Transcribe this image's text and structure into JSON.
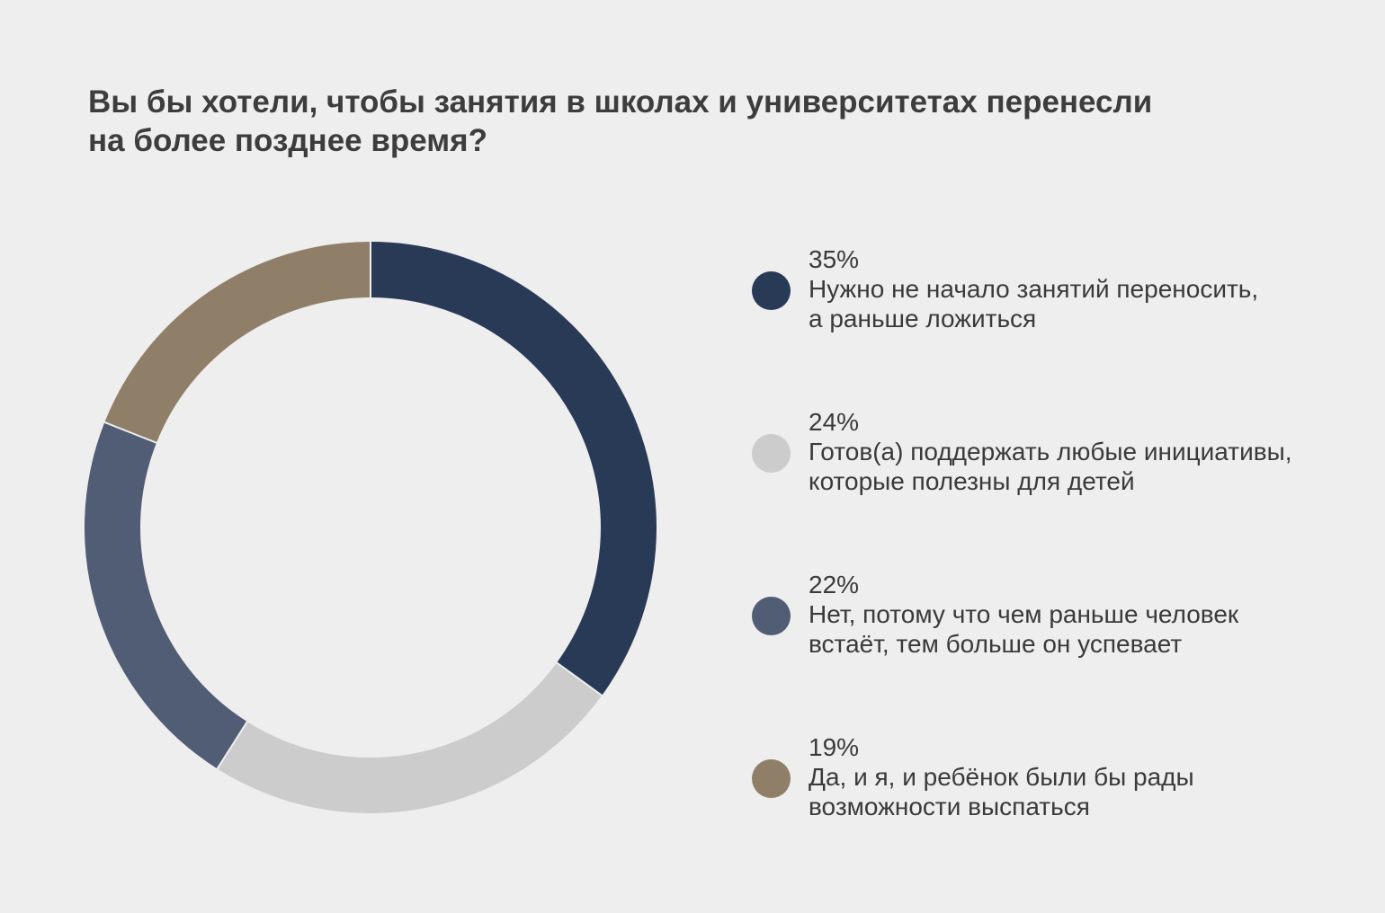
{
  "title": {
    "line1": "Вы бы хотели, чтобы занятия в школах и университетах перенесли",
    "line2": "на более позднее время?"
  },
  "chart_data": {
    "type": "pie",
    "donut": true,
    "title": "Вы бы хотели, чтобы занятия в школах и университетах перенесли на более позднее время?",
    "legend_position": "right",
    "slices": [
      {
        "value": 35,
        "label": "35%",
        "text_line1": "Нужно не начало занятий переносить,",
        "text_line2": "а раньше ложиться",
        "color": "#293a56"
      },
      {
        "value": 24,
        "label": "24%",
        "text_line1": "Готов(а) поддержать любые инициативы,",
        "text_line2": "которые полезны для детей",
        "color": "#cccccc"
      },
      {
        "value": 22,
        "label": "22%",
        "text_line1": "Нет, потому что чем раньше человек",
        "text_line2": "встаёт, тем больше он успевает",
        "color": "#515c75"
      },
      {
        "value": 19,
        "label": "19%",
        "text_line1": "Да, и я, и ребёнок были бы рады",
        "text_line2": "возможности выспаться",
        "color": "#8f7f68"
      }
    ]
  }
}
